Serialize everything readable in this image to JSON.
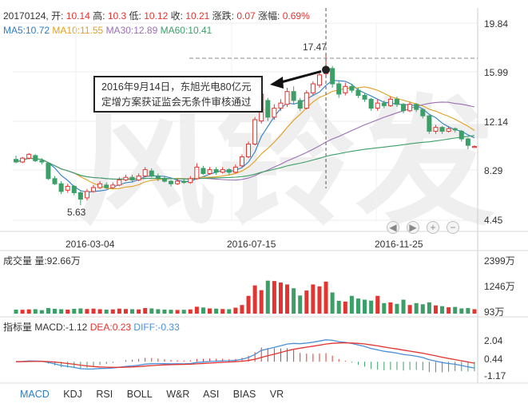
{
  "header": {
    "date": "20170124,",
    "open_label": "开:",
    "open": "10.14",
    "high_label": "高:",
    "high": "10.3",
    "low_label": "低:",
    "low": "10.12",
    "close_label": "收:",
    "close": "10.21",
    "change_label": "涨跌:",
    "change": "0.07",
    "pct_label": "涨幅:",
    "pct": "0.69%"
  },
  "ma": {
    "ma5": "MA5:10.72",
    "ma10": "MA10:11.55",
    "ma30": "MA30:12.89",
    "ma60": "MA60:10.41"
  },
  "price_axis": [
    "19.84",
    "15.99",
    "12.14",
    "8.29",
    "4.45"
  ],
  "date_axis": [
    "2016-03-04",
    "2016-07-15",
    "2016-11-25"
  ],
  "annotations": {
    "high": "17.47",
    "low": "5.63",
    "callout_line1": "2016年9月14日，东旭光电80亿元",
    "callout_line2": "定增方案获证监会无条件审核通过"
  },
  "watermark": "风铃发",
  "nav_buttons": [
    "◀",
    "▶",
    "+",
    "−"
  ],
  "volume": {
    "title": "成交量 量:92.66万",
    "axis": [
      "2399万",
      "1246万",
      "93万"
    ]
  },
  "indicator": {
    "prefix": "指标量 MACD:-1.12",
    "dea": "DEA:0.23",
    "diff": "DIFF:-0.33",
    "axis": [
      "2.04",
      "0.44",
      "-1.17"
    ]
  },
  "tabs": [
    "MACD",
    "KDJ",
    "RSI",
    "BOLL",
    "W&R",
    "ASI",
    "BIAS",
    "VR"
  ],
  "colors": {
    "up": "#e3342f",
    "down": "#3c9f68",
    "ma5": "#2f7ec4",
    "ma10": "#e3a020",
    "ma30": "#9b6fb3",
    "ma60": "#3c9f68",
    "dea": "#e3342f",
    "diff": "#4a90d9",
    "active_tab": "#2f7ec4"
  },
  "chart_data": {
    "type": "candlestick",
    "price_range": [
      4.45,
      19.84
    ],
    "candles": [
      [
        9.2,
        9.0,
        9.5,
        8.9
      ],
      [
        9.0,
        9.3,
        9.4,
        8.9
      ],
      [
        9.3,
        9.6,
        9.7,
        9.2
      ],
      [
        9.5,
        9.1,
        9.6,
        9.0
      ],
      [
        9.1,
        9.0,
        9.3,
        8.8
      ],
      [
        8.9,
        7.7,
        9.0,
        7.6
      ],
      [
        7.7,
        7.3,
        7.9,
        7.2
      ],
      [
        7.3,
        6.7,
        7.5,
        6.5
      ],
      [
        6.8,
        7.1,
        7.3,
        6.6
      ],
      [
        7.1,
        6.6,
        7.2,
        6.4
      ],
      [
        6.6,
        6.1,
        6.8,
        5.63
      ],
      [
        6.2,
        6.7,
        6.9,
        6.0
      ],
      [
        6.7,
        7.0,
        7.2,
        6.6
      ],
      [
        7.0,
        7.3,
        7.5,
        6.9
      ],
      [
        7.2,
        7.0,
        7.4,
        6.9
      ],
      [
        7.0,
        7.2,
        7.4,
        6.9
      ],
      [
        7.2,
        7.6,
        7.8,
        7.1
      ],
      [
        7.6,
        7.8,
        8.0,
        7.5
      ],
      [
        7.8,
        7.6,
        8.0,
        7.4
      ],
      [
        7.6,
        7.9,
        8.1,
        7.5
      ],
      [
        7.9,
        8.4,
        8.6,
        7.8
      ],
      [
        8.3,
        7.9,
        8.5,
        7.8
      ],
      [
        7.9,
        7.7,
        8.1,
        7.5
      ],
      [
        7.7,
        7.5,
        7.9,
        7.4
      ],
      [
        7.5,
        7.3,
        7.6,
        7.1
      ],
      [
        7.3,
        7.5,
        7.7,
        7.2
      ],
      [
        7.5,
        7.4,
        7.7,
        7.3
      ],
      [
        7.4,
        7.7,
        7.9,
        7.3
      ],
      [
        7.7,
        8.6,
        8.9,
        7.6
      ],
      [
        8.5,
        8.1,
        8.7,
        8.0
      ],
      [
        8.1,
        8.4,
        8.6,
        8.0
      ],
      [
        8.4,
        8.2,
        8.6,
        8.0
      ],
      [
        8.2,
        8.4,
        8.6,
        8.1
      ],
      [
        8.4,
        8.2,
        8.5,
        8.0
      ],
      [
        8.2,
        8.6,
        8.8,
        8.1
      ],
      [
        8.7,
        9.4,
        9.6,
        8.6
      ],
      [
        9.4,
        10.4,
        10.6,
        9.3
      ],
      [
        10.4,
        12.3,
        12.5,
        10.3
      ],
      [
        12.2,
        14.3,
        14.6,
        12.0
      ],
      [
        13.8,
        12.5,
        14.0,
        12.2
      ],
      [
        12.5,
        13.2,
        13.5,
        12.3
      ],
      [
        13.2,
        13.6,
        13.9,
        13.0
      ],
      [
        13.5,
        14.5,
        14.8,
        13.3
      ],
      [
        14.5,
        13.8,
        14.9,
        13.5
      ],
      [
        13.8,
        13.2,
        14.0,
        13.0
      ],
      [
        13.2,
        14.4,
        14.6,
        13.1
      ],
      [
        14.4,
        15.1,
        15.3,
        14.2
      ],
      [
        15.0,
        15.8,
        16.0,
        14.8
      ],
      [
        15.9,
        16.4,
        17.47,
        15.6
      ],
      [
        16.3,
        15.1,
        16.5,
        14.8
      ],
      [
        15.1,
        14.3,
        15.3,
        14.0
      ],
      [
        14.4,
        14.9,
        15.2,
        14.2
      ],
      [
        14.9,
        14.6,
        15.1,
        14.4
      ],
      [
        14.6,
        14.2,
        14.8,
        14.0
      ],
      [
        14.2,
        13.9,
        14.4,
        13.7
      ],
      [
        13.9,
        13.2,
        14.0,
        13.0
      ],
      [
        13.2,
        13.6,
        13.9,
        13.0
      ],
      [
        13.6,
        13.4,
        13.8,
        13.2
      ],
      [
        13.4,
        13.9,
        14.1,
        13.3
      ],
      [
        13.9,
        13.5,
        14.1,
        13.3
      ],
      [
        13.5,
        13.0,
        13.6,
        12.8
      ],
      [
        13.0,
        13.5,
        13.7,
        12.9
      ],
      [
        13.5,
        13.1,
        13.6,
        12.9
      ],
      [
        13.1,
        12.6,
        13.2,
        12.4
      ],
      [
        12.6,
        11.4,
        12.7,
        11.2
      ],
      [
        11.4,
        11.7,
        11.9,
        11.2
      ],
      [
        11.7,
        11.4,
        11.8,
        11.2
      ],
      [
        11.4,
        11.6,
        11.8,
        11.3
      ],
      [
        11.6,
        11.5,
        11.7,
        11.3
      ],
      [
        11.4,
        10.8,
        11.5,
        10.6
      ],
      [
        10.8,
        10.3,
        10.9,
        10.0
      ],
      [
        10.14,
        10.21,
        10.3,
        10.12
      ]
    ],
    "volume": [
      180,
      170,
      190,
      200,
      150,
      260,
      220,
      200,
      180,
      220,
      240,
      210,
      230,
      200,
      180,
      190,
      230,
      210,
      200,
      190,
      260,
      240,
      200,
      180,
      170,
      160,
      170,
      190,
      330,
      290,
      240,
      230,
      210,
      200,
      280,
      420,
      900,
      1450,
      1200,
      1700,
      1680,
      1600,
      1500,
      1300,
      920,
      1180,
      1500,
      1400,
      1650,
      1080,
      640,
      600,
      900,
      760,
      700,
      650,
      900,
      520,
      560,
      480,
      700,
      420,
      520,
      460,
      560,
      400,
      360,
      300,
      320,
      240,
      260,
      200
    ],
    "volume_range": [
      93,
      2399
    ],
    "macd_range": [
      -1.17,
      2.04
    ]
  }
}
